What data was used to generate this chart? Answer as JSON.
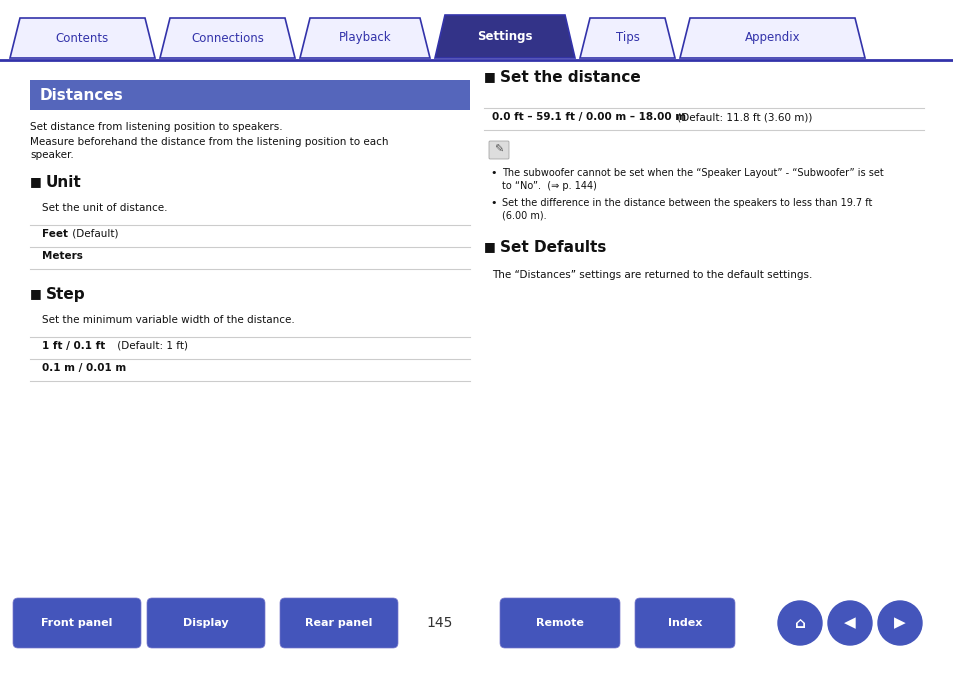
{
  "bg_color": "#ffffff",
  "nav_tabs": [
    "Contents",
    "Connections",
    "Playback",
    "Settings",
    "Tips",
    "Appendix"
  ],
  "nav_active_index": 3,
  "nav_tab_inactive_bg": "#f0f0ff",
  "nav_tab_active_bg": "#333388",
  "nav_border_color": "#3333aa",
  "nav_text_inactive": "#3333aa",
  "nav_text_active": "#ffffff",
  "distances_header": "Distances",
  "distances_header_bg": "#5566bb",
  "distances_header_text": "#ffffff",
  "desc1": "Set distance from listening position to speakers.",
  "desc2a": "Measure beforehand the distance from the listening position to each",
  "desc2b": "speaker.",
  "unit_title": "Unit",
  "unit_desc": "Set the unit of distance.",
  "unit_row1_b": "Feet",
  "unit_row1_n": " (Default)",
  "unit_row2": "Meters",
  "step_title": "Step",
  "step_desc": "Set the minimum variable width of the distance.",
  "step_row1_b": "1 ft / 0.1 ft",
  "step_row1_n": " (Default: 1 ft)",
  "step_row2": "0.1 m / 0.01 m",
  "set_dist_title": "Set the distance",
  "set_dist_range_b": "0.0 ft – 59.1 ft / 0.00 m – 18.00 m",
  "set_dist_range_n": " (Default: 11.8 ft (3.60 m))",
  "note1a": "The subwoofer cannot be set when the “Speaker Layout” - “Subwoofer” is set",
  "note1b": "to “No”.  (⇒ p. 144)",
  "note2a": "Set the difference in the distance between the speakers to less than 19.7 ft",
  "note2b": "(6.00 m).",
  "set_def_title": "Set Defaults",
  "set_def_desc": "The “Distances” settings are returned to the default settings.",
  "bottom_btns": [
    "Front panel",
    "Display",
    "Rear panel",
    "Remote",
    "Index"
  ],
  "page_num": "145",
  "btn_color": "#4455bb",
  "line_color": "#cccccc",
  "body_color": "#111111"
}
